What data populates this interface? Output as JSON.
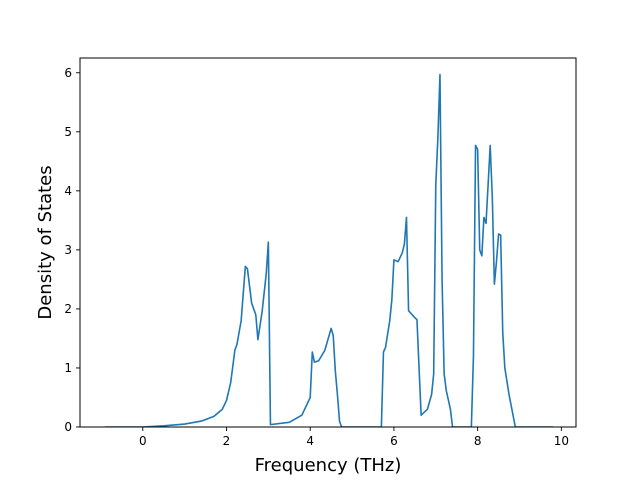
{
  "chart_data": {
    "type": "line",
    "xlabel": "Frequency (THz)",
    "ylabel": "Density of States",
    "xlim": [
      -1.5,
      10.35
    ],
    "ylim": [
      0,
      6.25
    ],
    "xticks": [
      0,
      2,
      4,
      6,
      8,
      10
    ],
    "yticks": [
      0,
      1,
      2,
      3,
      4,
      5,
      6
    ],
    "grid": false,
    "line_color": "#1f77b4",
    "series": [
      {
        "x": [
          -0.9,
          -0.5,
          0.0,
          0.5,
          1.0,
          1.4,
          1.7,
          1.9,
          2.0,
          2.1,
          2.2,
          2.25,
          2.35,
          2.45,
          2.5,
          2.6,
          2.7,
          2.75,
          2.85,
          2.95,
          3.0,
          3.05,
          3.5,
          3.8,
          4.0,
          4.05,
          4.1,
          4.2,
          4.35,
          4.5,
          4.55,
          4.6,
          4.65,
          4.7,
          4.75,
          4.8,
          5.0,
          5.5,
          5.7,
          5.75,
          5.8,
          5.9,
          5.95,
          6.0,
          6.1,
          6.2,
          6.25,
          6.3,
          6.35,
          6.5,
          6.55,
          6.65,
          6.8,
          6.9,
          6.95,
          7.0,
          7.05,
          7.1,
          7.15,
          7.2,
          7.25,
          7.35,
          7.4,
          7.5,
          7.85,
          7.9,
          7.95,
          8.0,
          8.05,
          8.1,
          8.15,
          8.2,
          8.25,
          8.3,
          8.35,
          8.4,
          8.45,
          8.5,
          8.55,
          8.6,
          8.65,
          8.75,
          8.9,
          9.1,
          9.8
        ],
        "y": [
          0.0,
          0.0,
          0.0,
          0.02,
          0.05,
          0.1,
          0.18,
          0.3,
          0.45,
          0.75,
          1.3,
          1.4,
          1.8,
          2.72,
          2.68,
          2.1,
          1.9,
          1.48,
          1.95,
          2.6,
          3.13,
          0.04,
          0.08,
          0.2,
          0.5,
          1.27,
          1.1,
          1.12,
          1.3,
          1.67,
          1.55,
          0.95,
          0.55,
          0.1,
          0.0,
          0.0,
          0.0,
          0.0,
          0.0,
          1.27,
          1.35,
          1.8,
          2.15,
          2.83,
          2.8,
          2.95,
          3.1,
          3.55,
          1.97,
          1.85,
          1.82,
          0.2,
          0.3,
          0.55,
          0.9,
          4.1,
          4.9,
          5.97,
          2.5,
          0.9,
          0.62,
          0.3,
          0.0,
          0.0,
          0.0,
          1.2,
          4.77,
          4.7,
          3.0,
          2.9,
          3.55,
          3.45,
          4.1,
          4.77,
          3.9,
          2.42,
          2.8,
          3.27,
          3.25,
          1.6,
          1.0,
          0.55,
          0.0,
          0.0,
          0.0
        ]
      }
    ]
  }
}
